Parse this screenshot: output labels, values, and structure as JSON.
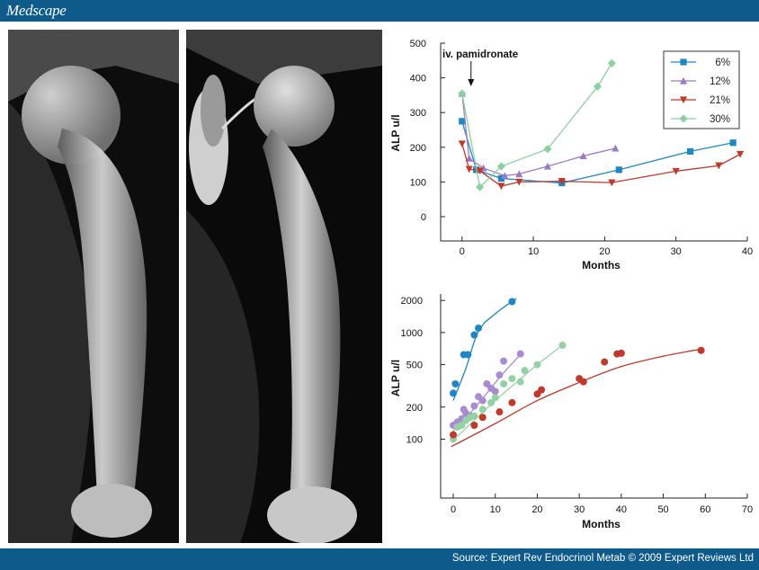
{
  "header": {
    "brand": "Medscape"
  },
  "footer": {
    "source": "Source: Expert Rev Endocrinol Metab © 2009 Expert Reviews Ltd"
  },
  "colors": {
    "brand_bar": "#0e5a8a",
    "xray_background": "#000000"
  },
  "chart_data": [
    {
      "type": "line",
      "xlabel": "Months",
      "ylabel": "ALP u/l",
      "xlim": [
        -3,
        40
      ],
      "ylim": [
        -70,
        500
      ],
      "xticks": [
        0,
        10,
        20,
        30,
        40
      ],
      "yticks": [
        0,
        100,
        200,
        300,
        400,
        500
      ],
      "legend_position": "top-right",
      "annotation": {
        "text": "iv. pamidronate",
        "x": 0,
        "points_to_y": 360
      },
      "series": [
        {
          "name": "6%",
          "color": "#1f87c4",
          "marker": "square",
          "x": [
            0,
            2,
            5.5,
            14,
            22,
            32,
            38
          ],
          "y": [
            275,
            135,
            110,
            97,
            135,
            188,
            213
          ]
        },
        {
          "name": "12%",
          "color": "#9b7bc6",
          "marker": "triangle-up",
          "x": [
            0,
            1,
            3,
            6,
            8,
            12,
            17,
            21.5
          ],
          "y": [
            355,
            168,
            140,
            118,
            123,
            145,
            175,
            197
          ]
        },
        {
          "name": "21%",
          "color": "#c0392b",
          "marker": "triangle-down",
          "x": [
            0,
            1,
            2.5,
            5.5,
            8,
            14,
            21,
            30,
            36,
            39
          ],
          "y": [
            210,
            137,
            132,
            88,
            100,
            102,
            98,
            131,
            147,
            180
          ]
        },
        {
          "name": "30%",
          "color": "#8ccfa0",
          "marker": "diamond",
          "x": [
            0,
            2.5,
            5.5,
            12,
            19,
            21
          ],
          "y": [
            355,
            85,
            145,
            195,
            375,
            442
          ]
        }
      ]
    },
    {
      "type": "scatter",
      "xlabel": "Months",
      "ylabel": "ALP u/l",
      "y_scale": "log",
      "xlim": [
        -3,
        70
      ],
      "ylim": [
        28,
        2300
      ],
      "xticks": [
        0,
        10,
        20,
        30,
        40,
        50,
        60,
        70
      ],
      "yticks": [
        100,
        200,
        500,
        1000,
        2000
      ],
      "series": [
        {
          "color": "#1f87c4",
          "x": [
            0,
            0.5,
            2.5,
            3.5,
            5,
            6,
            14
          ],
          "y": [
            270,
            330,
            620,
            620,
            950,
            1100,
            1950
          ],
          "fit": {
            "x": [
              0,
              3,
              6,
              10,
              15
            ],
            "y": [
              230,
              460,
              1030,
              1500,
              2080
            ]
          }
        },
        {
          "color": "#a98bd0",
          "x": [
            0,
            1,
            2,
            2.5,
            3,
            4,
            5,
            6,
            7,
            8,
            9,
            10,
            11,
            12,
            16
          ],
          "y": [
            135,
            145,
            155,
            190,
            175,
            165,
            205,
            250,
            230,
            330,
            300,
            280,
            400,
            540,
            630
          ],
          "fit": {
            "x": [
              0,
              4,
              8,
              12,
              16
            ],
            "y": [
              120,
              175,
              270,
              420,
              620
            ]
          }
        },
        {
          "color": "#94d1a4",
          "x": [
            0,
            1,
            2,
            3,
            4,
            5,
            7,
            9,
            10,
            12,
            14,
            16,
            17,
            20,
            26
          ],
          "y": [
            100,
            130,
            135,
            150,
            160,
            165,
            190,
            220,
            245,
            330,
            370,
            345,
            440,
            500,
            760
          ],
          "fit": {
            "x": [
              0,
              5,
              10,
              15,
              20,
              26
            ],
            "y": [
              98,
              150,
              230,
              340,
              500,
              760
            ]
          }
        },
        {
          "color": "#c0392b",
          "x": [
            0,
            5,
            7,
            11,
            14,
            20,
            21,
            30,
            31,
            36,
            39,
            40,
            59
          ],
          "y": [
            110,
            135,
            160,
            180,
            220,
            265,
            290,
            370,
            345,
            530,
            630,
            640,
            680
          ],
          "fit": {
            "x": [
              -0.5,
              10,
              20,
              30,
              40,
              50,
              59
            ],
            "y": [
              85,
              140,
              230,
              340,
              480,
              600,
              700
            ]
          }
        }
      ]
    }
  ]
}
